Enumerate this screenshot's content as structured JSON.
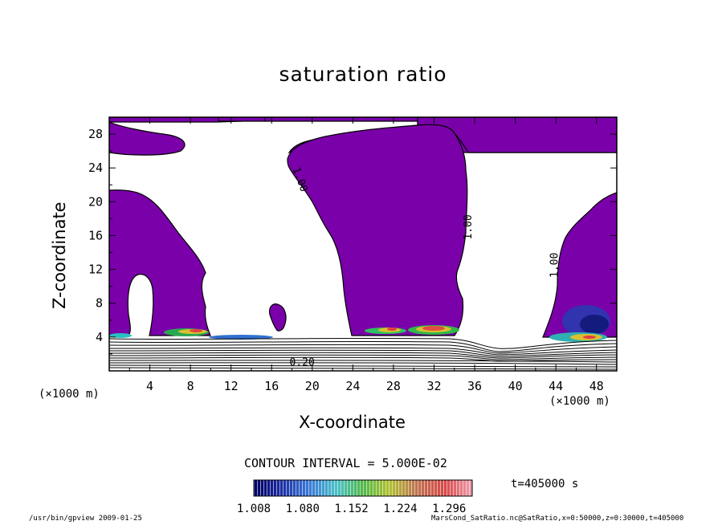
{
  "chart_data": {
    "type": "heatmap",
    "title": "saturation ratio",
    "xlabel": "X-coordinate",
    "ylabel": "Z-coordinate",
    "xunit": "(×1000 m)",
    "xlim": [
      0,
      50
    ],
    "ylim": [
      0,
      30
    ],
    "x_ticks": [
      "4",
      "8",
      "12",
      "16",
      "20",
      "24",
      "28",
      "32",
      "36",
      "40",
      "44",
      "48"
    ],
    "y_ticks": [
      "4",
      "8",
      "12",
      "16",
      "20",
      "24",
      "28"
    ],
    "contour_labels": [
      {
        "text": "1.00",
        "x": 18.5,
        "z": 22.5
      },
      {
        "text": "1.00",
        "x": 35.7,
        "z": 17.0
      },
      {
        "text": "1.00",
        "x": 44.2,
        "z": 12.5
      },
      {
        "text": "0.20",
        "x": 19.0,
        "z": 0.6
      }
    ],
    "contour_interval": "CONTOUR INTERVAL = 5.000E-02",
    "colorbar_ticks": [
      "1.008",
      "1.080",
      "1.152",
      "1.224",
      "1.296"
    ],
    "colorbar_range": [
      1.008,
      1.33
    ],
    "time": "t=405000 s",
    "colors": {
      "fill": "#7a00aa",
      "outline": "#000000"
    }
  },
  "footer": {
    "left": "/usr/bin/gpview   2009-01-25",
    "right": "MarsCond_SatRatio.nc@SatRatio,x=0:50000,z=0:30000,t=405000"
  }
}
